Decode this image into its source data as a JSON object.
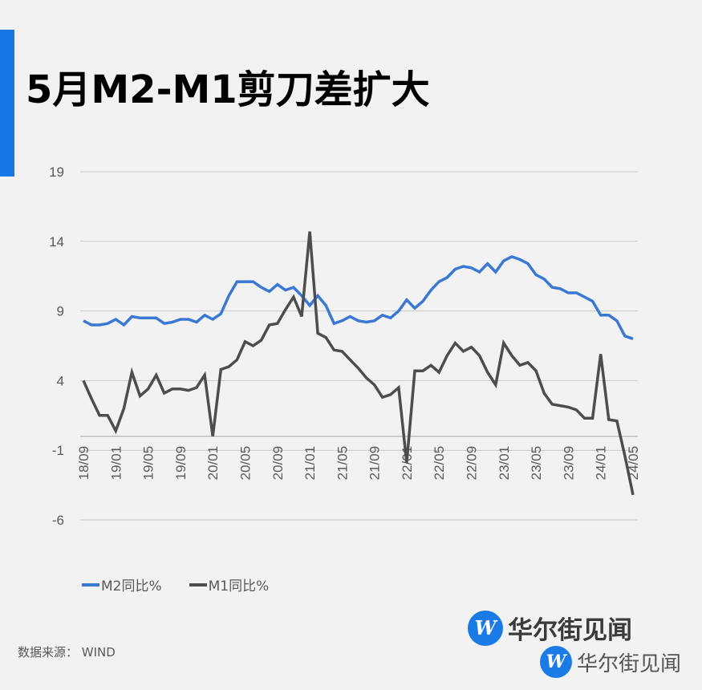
{
  "header": {
    "title": "5月M2-M1剪刀差扩大",
    "accent_color": "#1677e6"
  },
  "legend": {
    "m2_label": "M2同比%",
    "m1_label": "M1同比%"
  },
  "footer": {
    "source": "数据来源：  WIND",
    "logo_text_1": "华尔街见闻",
    "logo_text_2": "华尔街见闻",
    "logo_glyph": "W"
  },
  "chart_data": {
    "type": "line",
    "title": "5月M2-M1剪刀差扩大",
    "xlabel": "",
    "ylabel": "",
    "ylim": [
      -6,
      19
    ],
    "yticks": [
      19,
      14,
      9,
      4,
      -1,
      -6
    ],
    "grid": true,
    "legend_position": "bottom-left",
    "x_tick_labels": [
      "18/09",
      "19/01",
      "19/05",
      "19/09",
      "20/01",
      "20/05",
      "20/09",
      "21/01",
      "21/05",
      "21/09",
      "22/01",
      "22/05",
      "22/09",
      "23/01",
      "23/05",
      "23/09",
      "24/01",
      "24/05"
    ],
    "x": [
      "18/09",
      "18/10",
      "18/11",
      "18/12",
      "19/01",
      "19/02",
      "19/03",
      "19/04",
      "19/05",
      "19/06",
      "19/07",
      "19/08",
      "19/09",
      "19/10",
      "19/11",
      "19/12",
      "20/01",
      "20/02",
      "20/03",
      "20/04",
      "20/05",
      "20/06",
      "20/07",
      "20/08",
      "20/09",
      "20/10",
      "20/11",
      "20/12",
      "21/01",
      "21/02",
      "21/03",
      "21/04",
      "21/05",
      "21/06",
      "21/07",
      "21/08",
      "21/09",
      "21/10",
      "21/11",
      "21/12",
      "22/01",
      "22/02",
      "22/03",
      "22/04",
      "22/05",
      "22/06",
      "22/07",
      "22/08",
      "22/09",
      "22/10",
      "22/11",
      "22/12",
      "23/01",
      "23/02",
      "23/03",
      "23/04",
      "23/05",
      "23/06",
      "23/07",
      "23/08",
      "23/09",
      "23/10",
      "23/11",
      "23/12",
      "24/01",
      "24/02",
      "24/03",
      "24/04",
      "24/05"
    ],
    "series": [
      {
        "name": "M2同比%",
        "color": "#3a78d4",
        "values": [
          8.3,
          8.0,
          8.0,
          8.1,
          8.4,
          8.0,
          8.6,
          8.5,
          8.5,
          8.5,
          8.1,
          8.2,
          8.4,
          8.4,
          8.2,
          8.7,
          8.4,
          8.8,
          10.1,
          11.1,
          11.1,
          11.1,
          10.7,
          10.4,
          10.9,
          10.5,
          10.7,
          10.1,
          9.4,
          10.1,
          9.4,
          8.1,
          8.3,
          8.6,
          8.3,
          8.2,
          8.3,
          8.7,
          8.5,
          9.0,
          9.8,
          9.2,
          9.7,
          10.5,
          11.1,
          11.4,
          12.0,
          12.2,
          12.1,
          11.8,
          12.4,
          11.8,
          12.6,
          12.9,
          12.7,
          12.4,
          11.6,
          11.3,
          10.7,
          10.6,
          10.3,
          10.3,
          10.0,
          9.7,
          8.7,
          8.7,
          8.3,
          7.2,
          7.0
        ]
      },
      {
        "name": "M1同比%",
        "color": "#4d4d4d",
        "values": [
          4.0,
          2.7,
          1.5,
          1.5,
          0.4,
          2.0,
          4.6,
          2.9,
          3.4,
          4.4,
          3.1,
          3.4,
          3.4,
          3.3,
          3.5,
          4.4,
          0.0,
          4.8,
          5.0,
          5.5,
          6.8,
          6.5,
          6.9,
          8.0,
          8.1,
          9.1,
          10.0,
          8.6,
          14.7,
          7.4,
          7.1,
          6.2,
          6.1,
          5.5,
          4.9,
          4.2,
          3.7,
          2.8,
          3.0,
          3.5,
          -1.9,
          4.7,
          4.7,
          5.1,
          4.6,
          5.8,
          6.7,
          6.1,
          6.4,
          5.8,
          4.6,
          3.7,
          6.7,
          5.8,
          5.1,
          5.3,
          4.7,
          3.1,
          2.3,
          2.2,
          2.1,
          1.9,
          1.3,
          1.3,
          5.9,
          1.2,
          1.1,
          -1.4,
          -4.2
        ]
      }
    ]
  }
}
